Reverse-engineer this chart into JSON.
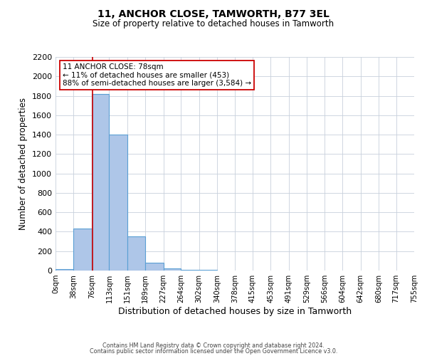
{
  "title": "11, ANCHOR CLOSE, TAMWORTH, B77 3EL",
  "subtitle": "Size of property relative to detached houses in Tamworth",
  "xlabel": "Distribution of detached houses by size in Tamworth",
  "ylabel": "Number of detached properties",
  "bin_edges": [
    0,
    38,
    76,
    113,
    151,
    189,
    227,
    264,
    302,
    340,
    378,
    415,
    453,
    491,
    529,
    566,
    604,
    642,
    680,
    717,
    755
  ],
  "bin_counts": [
    15,
    430,
    1820,
    1400,
    350,
    80,
    25,
    10,
    5,
    0,
    0,
    0,
    0,
    0,
    0,
    0,
    0,
    0,
    0,
    0
  ],
  "bar_color": "#aec6e8",
  "bar_edge_color": "#5a9fd4",
  "property_line_x": 78,
  "property_line_color": "#cc0000",
  "annotation_title": "11 ANCHOR CLOSE: 78sqm",
  "annotation_line1": "← 11% of detached houses are smaller (453)",
  "annotation_line2": "88% of semi-detached houses are larger (3,584) →",
  "annotation_box_color": "#ffffff",
  "annotation_box_edge": "#cc0000",
  "ylim": [
    0,
    2200
  ],
  "yticks": [
    0,
    200,
    400,
    600,
    800,
    1000,
    1200,
    1400,
    1600,
    1800,
    2000,
    2200
  ],
  "tick_labels": [
    "0sqm",
    "38sqm",
    "76sqm",
    "113sqm",
    "151sqm",
    "189sqm",
    "227sqm",
    "264sqm",
    "302sqm",
    "340sqm",
    "378sqm",
    "415sqm",
    "453sqm",
    "491sqm",
    "529sqm",
    "566sqm",
    "604sqm",
    "642sqm",
    "680sqm",
    "717sqm",
    "755sqm"
  ],
  "footer_line1": "Contains HM Land Registry data © Crown copyright and database right 2024.",
  "footer_line2": "Contains public sector information licensed under the Open Government Licence v3.0.",
  "background_color": "#ffffff",
  "grid_color": "#c8d0dc"
}
